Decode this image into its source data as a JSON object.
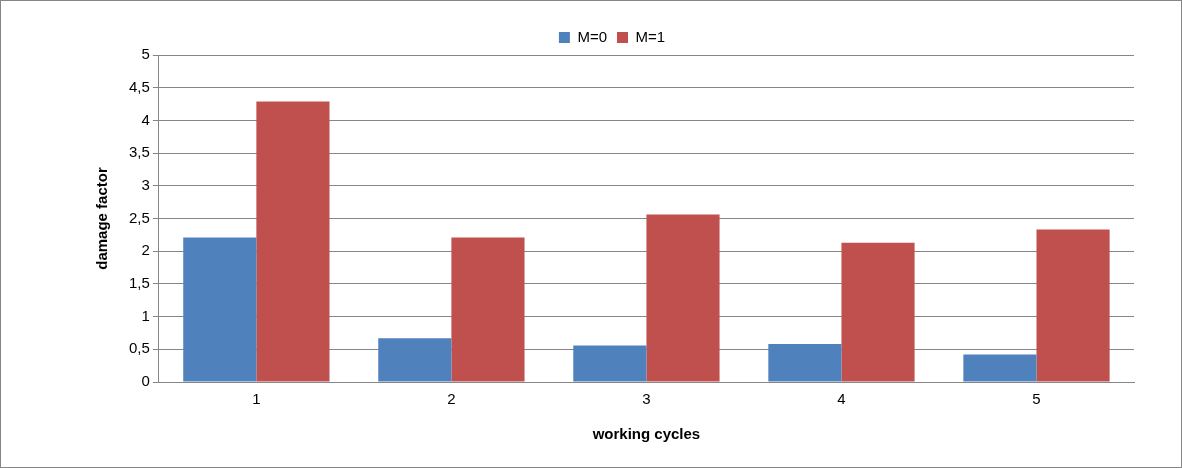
{
  "chart_data": {
    "type": "bar",
    "xlabel": "working cycles",
    "ylabel": "damage factor",
    "categories": [
      "1",
      "2",
      "3",
      "4",
      "5"
    ],
    "series": [
      {
        "name": "M=0",
        "color": "#4f81bd",
        "values": [
          2.21,
          0.67,
          0.56,
          0.58,
          0.42
        ]
      },
      {
        "name": "M=1",
        "color": "#c0504d",
        "values": [
          4.29,
          2.21,
          2.56,
          2.13,
          2.33
        ]
      }
    ],
    "ylim": [
      0,
      5
    ],
    "yticks": [
      0,
      {
        "value": 0.5,
        "label": "0,5"
      },
      1,
      {
        "value": 1.5,
        "label": "1,5"
      },
      2,
      {
        "value": 2.5,
        "label": "2,5"
      },
      3,
      {
        "value": 3.5,
        "label": "3,5"
      },
      4,
      {
        "value": 4.5,
        "label": "4,5"
      },
      5
    ],
    "grid": "y",
    "legend": "top"
  }
}
